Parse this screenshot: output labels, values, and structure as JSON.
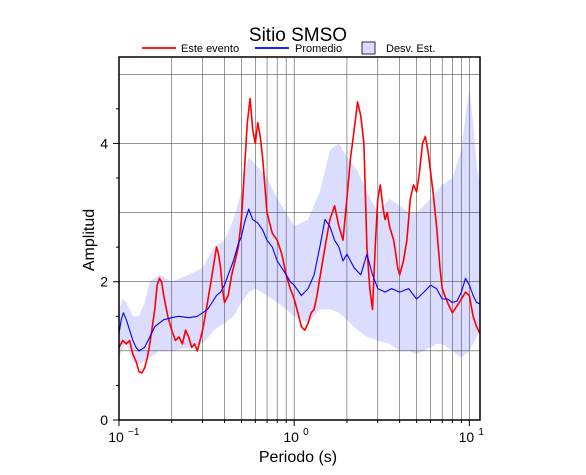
{
  "chart_data": {
    "type": "line",
    "title": "Sitio SMSO",
    "xlabel": "Periodo (s)",
    "ylabel": "Amplitud",
    "xscale": "log",
    "xlim": [
      0.1,
      11.5
    ],
    "ylim": [
      0,
      5.25
    ],
    "x_ticks": [
      {
        "base": "10",
        "exp": "−1",
        "value": 0.1
      },
      {
        "base": "10",
        "exp": "0",
        "value": 1
      },
      {
        "base": "10",
        "exp": "1",
        "value": 10
      }
    ],
    "y_ticks": [
      0,
      2,
      4
    ],
    "grid": true,
    "legend_position": "top",
    "legend": [
      {
        "label": "Este evento",
        "kind": "line",
        "color": "#ff0000"
      },
      {
        "label": "Promedio",
        "kind": "line",
        "color": "#0000ff"
      },
      {
        "label": "Desv. Est.",
        "kind": "box",
        "color": "#dcdcff"
      }
    ],
    "series": [
      {
        "name": "Este evento",
        "color": "#ff0000",
        "points": [
          [
            0.1,
            1.05
          ],
          [
            0.105,
            1.15
          ],
          [
            0.11,
            1.1
          ],
          [
            0.115,
            1.15
          ],
          [
            0.12,
            0.95
          ],
          [
            0.125,
            0.85
          ],
          [
            0.13,
            0.7
          ],
          [
            0.135,
            0.68
          ],
          [
            0.14,
            0.75
          ],
          [
            0.145,
            0.9
          ],
          [
            0.15,
            1.1
          ],
          [
            0.155,
            1.35
          ],
          [
            0.16,
            1.6
          ],
          [
            0.165,
            1.95
          ],
          [
            0.17,
            2.05
          ],
          [
            0.175,
            2.0
          ],
          [
            0.18,
            1.8
          ],
          [
            0.19,
            1.5
          ],
          [
            0.2,
            1.3
          ],
          [
            0.21,
            1.15
          ],
          [
            0.22,
            1.2
          ],
          [
            0.23,
            1.1
          ],
          [
            0.24,
            1.3
          ],
          [
            0.25,
            1.2
          ],
          [
            0.26,
            1.05
          ],
          [
            0.27,
            1.1
          ],
          [
            0.28,
            1.0
          ],
          [
            0.29,
            1.15
          ],
          [
            0.3,
            1.3
          ],
          [
            0.31,
            1.5
          ],
          [
            0.32,
            1.7
          ],
          [
            0.33,
            1.9
          ],
          [
            0.34,
            2.1
          ],
          [
            0.35,
            2.3
          ],
          [
            0.36,
            2.5
          ],
          [
            0.37,
            2.4
          ],
          [
            0.38,
            2.2
          ],
          [
            0.39,
            1.9
          ],
          [
            0.4,
            1.7
          ],
          [
            0.42,
            1.8
          ],
          [
            0.44,
            2.1
          ],
          [
            0.46,
            2.3
          ],
          [
            0.48,
            2.5
          ],
          [
            0.5,
            2.9
          ],
          [
            0.52,
            3.6
          ],
          [
            0.54,
            4.3
          ],
          [
            0.56,
            4.65
          ],
          [
            0.58,
            4.2
          ],
          [
            0.6,
            4.0
          ],
          [
            0.62,
            4.3
          ],
          [
            0.64,
            4.1
          ],
          [
            0.66,
            3.8
          ],
          [
            0.68,
            3.4
          ],
          [
            0.7,
            3.0
          ],
          [
            0.75,
            2.7
          ],
          [
            0.8,
            2.6
          ],
          [
            0.85,
            2.4
          ],
          [
            0.9,
            2.1
          ],
          [
            0.95,
            1.9
          ],
          [
            1.0,
            1.75
          ],
          [
            1.05,
            1.55
          ],
          [
            1.1,
            1.35
          ],
          [
            1.15,
            1.3
          ],
          [
            1.2,
            1.4
          ],
          [
            1.25,
            1.55
          ],
          [
            1.3,
            1.6
          ],
          [
            1.35,
            1.8
          ],
          [
            1.4,
            2.05
          ],
          [
            1.5,
            2.5
          ],
          [
            1.6,
            2.9
          ],
          [
            1.7,
            3.1
          ],
          [
            1.8,
            2.8
          ],
          [
            1.9,
            2.6
          ],
          [
            2.0,
            3.2
          ],
          [
            2.1,
            3.8
          ],
          [
            2.2,
            4.2
          ],
          [
            2.3,
            4.6
          ],
          [
            2.4,
            4.4
          ],
          [
            2.5,
            4.0
          ],
          [
            2.6,
            2.5
          ],
          [
            2.7,
            1.9
          ],
          [
            2.8,
            1.6
          ],
          [
            2.9,
            2.5
          ],
          [
            3.0,
            3.2
          ],
          [
            3.1,
            3.4
          ],
          [
            3.2,
            3.1
          ],
          [
            3.3,
            2.9
          ],
          [
            3.4,
            3.0
          ],
          [
            3.5,
            2.8
          ],
          [
            3.7,
            2.6
          ],
          [
            3.8,
            2.4
          ],
          [
            3.9,
            2.2
          ],
          [
            4.0,
            2.1
          ],
          [
            4.2,
            2.3
          ],
          [
            4.4,
            2.6
          ],
          [
            4.6,
            3.2
          ],
          [
            4.8,
            3.4
          ],
          [
            5.0,
            3.3
          ],
          [
            5.2,
            3.6
          ],
          [
            5.4,
            4.0
          ],
          [
            5.6,
            4.1
          ],
          [
            5.8,
            3.9
          ],
          [
            6.0,
            3.6
          ],
          [
            6.2,
            3.3
          ],
          [
            6.5,
            2.8
          ],
          [
            6.8,
            2.2
          ],
          [
            7.0,
            1.9
          ],
          [
            7.5,
            1.7
          ],
          [
            8.0,
            1.55
          ],
          [
            8.5,
            1.65
          ],
          [
            9.0,
            1.75
          ],
          [
            9.5,
            1.85
          ],
          [
            10.0,
            1.8
          ],
          [
            10.5,
            1.5
          ],
          [
            11.0,
            1.35
          ],
          [
            11.5,
            1.25
          ]
        ]
      },
      {
        "name": "Promedio",
        "color": "#0000ff",
        "points": [
          [
            0.1,
            1.25
          ],
          [
            0.103,
            1.45
          ],
          [
            0.106,
            1.55
          ],
          [
            0.11,
            1.45
          ],
          [
            0.115,
            1.3
          ],
          [
            0.12,
            1.15
          ],
          [
            0.125,
            1.05
          ],
          [
            0.13,
            1.0
          ],
          [
            0.14,
            1.05
          ],
          [
            0.15,
            1.2
          ],
          [
            0.16,
            1.35
          ],
          [
            0.18,
            1.45
          ],
          [
            0.2,
            1.48
          ],
          [
            0.22,
            1.5
          ],
          [
            0.25,
            1.48
          ],
          [
            0.28,
            1.5
          ],
          [
            0.3,
            1.55
          ],
          [
            0.32,
            1.6
          ],
          [
            0.34,
            1.7
          ],
          [
            0.36,
            1.8
          ],
          [
            0.38,
            1.85
          ],
          [
            0.4,
            1.95
          ],
          [
            0.42,
            2.1
          ],
          [
            0.45,
            2.3
          ],
          [
            0.48,
            2.55
          ],
          [
            0.5,
            2.65
          ],
          [
            0.52,
            2.85
          ],
          [
            0.55,
            3.05
          ],
          [
            0.58,
            2.9
          ],
          [
            0.62,
            2.85
          ],
          [
            0.66,
            2.75
          ],
          [
            0.7,
            2.6
          ],
          [
            0.75,
            2.5
          ],
          [
            0.8,
            2.3
          ],
          [
            0.85,
            2.2
          ],
          [
            0.9,
            2.1
          ],
          [
            0.95,
            2.0
          ],
          [
            1.0,
            1.95
          ],
          [
            1.1,
            1.8
          ],
          [
            1.2,
            1.9
          ],
          [
            1.3,
            2.1
          ],
          [
            1.4,
            2.5
          ],
          [
            1.5,
            2.9
          ],
          [
            1.6,
            2.8
          ],
          [
            1.7,
            2.6
          ],
          [
            1.8,
            2.5
          ],
          [
            1.9,
            2.3
          ],
          [
            2.0,
            2.4
          ],
          [
            2.2,
            2.2
          ],
          [
            2.4,
            2.1
          ],
          [
            2.6,
            2.4
          ],
          [
            2.8,
            2.1
          ],
          [
            3.0,
            1.9
          ],
          [
            3.3,
            1.85
          ],
          [
            3.6,
            1.9
          ],
          [
            4.0,
            1.85
          ],
          [
            4.5,
            1.9
          ],
          [
            5.0,
            1.75
          ],
          [
            5.5,
            1.85
          ],
          [
            6.0,
            1.95
          ],
          [
            6.5,
            1.9
          ],
          [
            7.0,
            1.75
          ],
          [
            7.5,
            1.75
          ],
          [
            8.0,
            1.7
          ],
          [
            8.5,
            1.72
          ],
          [
            9.0,
            1.85
          ],
          [
            9.5,
            2.05
          ],
          [
            10.0,
            1.95
          ],
          [
            10.5,
            1.8
          ],
          [
            11.0,
            1.7
          ],
          [
            11.5,
            1.68
          ]
        ]
      }
    ],
    "band": {
      "name": "Desv. Est.",
      "color": "#dcdcff",
      "x": [
        0.1,
        0.105,
        0.11,
        0.12,
        0.13,
        0.14,
        0.15,
        0.17,
        0.2,
        0.25,
        0.3,
        0.35,
        0.4,
        0.45,
        0.5,
        0.55,
        0.6,
        0.7,
        0.8,
        0.9,
        1.0,
        1.2,
        1.4,
        1.6,
        1.8,
        2.0,
        2.3,
        2.6,
        3.0,
        3.5,
        4.0,
        4.5,
        5.0,
        5.5,
        6.0,
        6.5,
        7.0,
        8.0,
        9.0,
        9.5,
        10.0,
        10.5,
        11.0,
        11.5
      ],
      "upper": [
        1.6,
        1.75,
        1.7,
        1.5,
        1.5,
        1.7,
        2.0,
        2.1,
        2.0,
        2.1,
        2.2,
        2.5,
        2.6,
        2.9,
        3.3,
        3.8,
        3.7,
        3.5,
        3.2,
        3.0,
        2.8,
        2.9,
        3.3,
        3.9,
        4.0,
        3.8,
        3.6,
        3.3,
        3.0,
        3.2,
        3.1,
        3.0,
        3.0,
        3.1,
        3.2,
        3.3,
        3.4,
        3.5,
        3.9,
        4.4,
        4.8,
        4.3,
        3.7,
        3.4
      ],
      "lower": [
        0.9,
        1.05,
        1.1,
        0.85,
        0.8,
        0.85,
        0.9,
        1.0,
        1.0,
        1.05,
        1.1,
        1.3,
        1.4,
        1.5,
        1.7,
        1.85,
        1.9,
        1.8,
        1.7,
        1.6,
        1.5,
        1.4,
        1.6,
        1.6,
        1.55,
        1.45,
        1.3,
        1.2,
        1.15,
        1.1,
        1.0,
        1.0,
        0.95,
        1.0,
        1.05,
        1.1,
        1.1,
        1.0,
        0.9,
        0.95,
        1.0,
        1.1,
        1.2,
        1.3
      ]
    }
  }
}
